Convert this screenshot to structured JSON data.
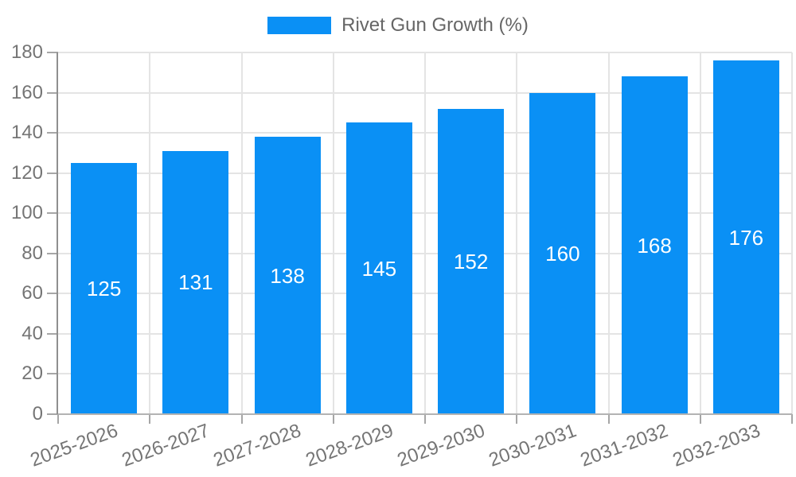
{
  "legend": {
    "label": "Rivet Gun Growth (%)",
    "swatch_color": "#0a90f5"
  },
  "chart_data": {
    "type": "bar",
    "title": "",
    "xlabel": "",
    "ylabel": "",
    "legend_position": "top",
    "categories": [
      "2025-2026",
      "2026-2027",
      "2027-2028",
      "2028-2029",
      "2029-2030",
      "2030-2031",
      "2031-2032",
      "2032-2033"
    ],
    "series": [
      {
        "name": "Rivet Gun Growth (%)",
        "color": "#0a90f5",
        "values": [
          125,
          131,
          138,
          145,
          152,
          160,
          168,
          176
        ]
      }
    ],
    "bar_value_labels_shown": true,
    "ylim": [
      0,
      180
    ],
    "yticks": [
      0,
      20,
      40,
      60,
      80,
      100,
      120,
      140,
      160,
      180
    ],
    "grid": true,
    "colors": {
      "grid": "#e4e4e4",
      "y_axis_line": "#8f8f8f",
      "x_axis_line": "#b3b3b3",
      "tick_mark": "#a6a6a6",
      "tick_text": "#757575",
      "legend_text": "#666666",
      "bar_label_text": "#ffffff"
    }
  }
}
